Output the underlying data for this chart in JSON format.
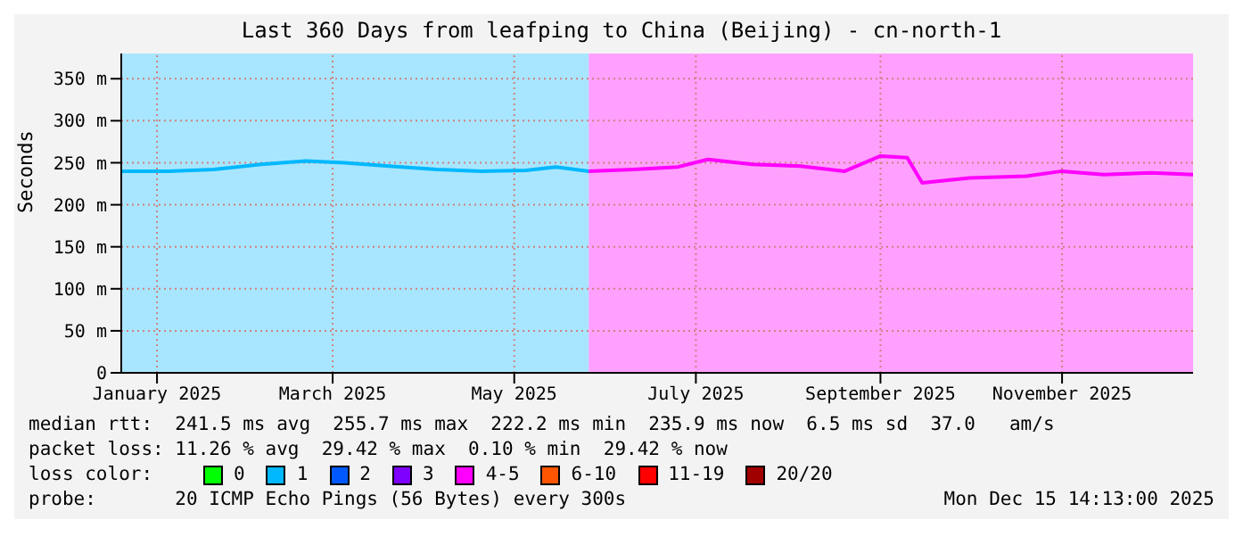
{
  "chart_data": {
    "type": "line",
    "title": "Last 360 Days from leafping to China (Beijing) - cn-north-1",
    "ylabel": "Seconds",
    "x": [
      "2024-12-20",
      "2025-01-05",
      "2025-01-20",
      "2025-02-05",
      "2025-02-20",
      "2025-03-05",
      "2025-03-20",
      "2025-04-05",
      "2025-04-20",
      "2025-05-05",
      "2025-05-15",
      "2025-05-26",
      "2025-06-10",
      "2025-06-25",
      "2025-07-05",
      "2025-07-20",
      "2025-08-05",
      "2025-08-20",
      "2025-09-01",
      "2025-09-10",
      "2025-09-15",
      "2025-10-01",
      "2025-10-20",
      "2025-11-01",
      "2025-11-15",
      "2025-12-01",
      "2025-12-15"
    ],
    "series": [
      {
        "name": "0",
        "color": "#00ff00",
        "values": [
          null,
          null,
          null,
          null,
          null,
          null,
          null,
          null,
          null,
          null,
          null,
          null,
          null,
          null,
          null,
          null,
          null,
          null,
          null,
          null,
          null,
          null,
          null,
          null,
          null,
          null,
          null
        ]
      },
      {
        "name": "1",
        "color": "#00b8ff",
        "values": [
          240,
          240,
          242,
          248,
          252,
          250,
          246,
          242,
          240,
          241,
          245,
          240,
          null,
          null,
          null,
          null,
          null,
          null,
          null,
          null,
          null,
          null,
          null,
          null,
          null,
          null,
          null
        ]
      },
      {
        "name": "2",
        "color": "#0059ff",
        "values": [
          null,
          null,
          null,
          null,
          null,
          null,
          null,
          null,
          null,
          null,
          null,
          null,
          null,
          null,
          null,
          null,
          null,
          null,
          null,
          null,
          null,
          null,
          null,
          null,
          null,
          null,
          null
        ]
      },
      {
        "name": "3",
        "color": "#7e00ff",
        "values": [
          null,
          null,
          null,
          null,
          null,
          null,
          null,
          null,
          null,
          null,
          null,
          null,
          null,
          null,
          null,
          null,
          null,
          null,
          null,
          null,
          null,
          null,
          null,
          null,
          null,
          null,
          null
        ]
      },
      {
        "name": "4-5",
        "color": "#ff00ff",
        "values": [
          null,
          null,
          null,
          null,
          null,
          null,
          null,
          null,
          null,
          null,
          null,
          240,
          242,
          245,
          254,
          248,
          246,
          240,
          258,
          256,
          226,
          232,
          234,
          240,
          236,
          238,
          236
        ]
      },
      {
        "name": "6-10",
        "color": "#ff5500",
        "values": [
          null,
          null,
          null,
          null,
          null,
          null,
          null,
          null,
          null,
          null,
          null,
          null,
          null,
          null,
          null,
          null,
          null,
          null,
          null,
          null,
          null,
          null,
          null,
          null,
          null,
          null,
          null
        ]
      },
      {
        "name": "11-19",
        "color": "#ff0000",
        "values": [
          null,
          null,
          null,
          null,
          null,
          null,
          null,
          null,
          null,
          null,
          null,
          null,
          null,
          null,
          null,
          null,
          null,
          null,
          null,
          null,
          null,
          null,
          null,
          null,
          null,
          null,
          null
        ]
      },
      {
        "name": "20/20",
        "color": "#a10000",
        "values": [
          null,
          null,
          null,
          null,
          null,
          null,
          null,
          null,
          null,
          null,
          null,
          null,
          null,
          null,
          null,
          null,
          null,
          null,
          null,
          null,
          null,
          null,
          null,
          null,
          null,
          null,
          null
        ]
      }
    ],
    "xlim": [
      "2024-12-20",
      "2025-12-15"
    ],
    "xticks": [
      {
        "value": "2025-01",
        "label": "January 2025"
      },
      {
        "value": "2025-03",
        "label": "March 2025"
      },
      {
        "value": "2025-05",
        "label": "May 2025"
      },
      {
        "value": "2025-07",
        "label": "July 2025"
      },
      {
        "value": "2025-09",
        "label": "September 2025"
      },
      {
        "value": "2025-11",
        "label": "November 2025"
      }
    ],
    "ylim": [
      0,
      380
    ],
    "yticks": [
      0,
      {
        "value": 50,
        "label": "50 m"
      },
      {
        "value": 100,
        "label": "100 m"
      },
      {
        "value": 150,
        "label": "150 m"
      },
      {
        "value": 200,
        "label": "200 m"
      },
      {
        "value": 250,
        "label": "250 m"
      },
      {
        "value": 300,
        "label": "300 m"
      },
      {
        "value": 350,
        "label": "350 m"
      }
    ],
    "bands": [
      {
        "axis": "x",
        "from": "2024-12-20",
        "to": "2025-05-26",
        "color": "#a8e6ff"
      },
      {
        "axis": "x",
        "from": "2025-05-26",
        "to": "2025-12-15",
        "color": "#ffa0ff"
      }
    ],
    "grid": true,
    "legend": "bottom",
    "marker": "none",
    "line_style": "solid",
    "annotations": [
      "median rtt:  241.5 ms avg  255.7 ms max  222.2 ms min  235.9 ms now  6.5 ms sd  37.0   am/s",
      "packet loss: 11.26 % avg  29.42 % max  0.10 % min  29.42 % now",
      "loss color:",
      "probe:       20 ICMP Echo Pings (56 Bytes) every 300s",
      "Mon Dec 15 14:13:00 2025"
    ]
  }
}
